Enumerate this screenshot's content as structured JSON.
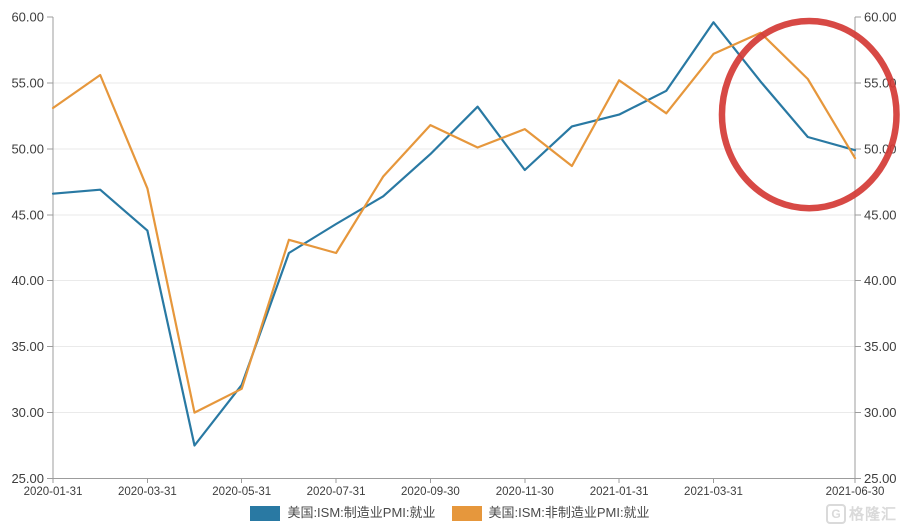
{
  "chart_data": {
    "type": "line",
    "title": "",
    "xlabel": "",
    "ylabel": "",
    "n_points": 18,
    "ylim": [
      25,
      60
    ],
    "y_ticks": [
      60,
      55,
      50,
      45,
      40,
      35,
      30,
      25
    ],
    "y_tick_decimals": 2,
    "grid": true,
    "legend_position": "bottom",
    "x_tick_labels": [
      {
        "i": 0,
        "label": "2020-01-31"
      },
      {
        "i": 2,
        "label": "2020-03-31"
      },
      {
        "i": 4,
        "label": "2020-05-31"
      },
      {
        "i": 6,
        "label": "2020-07-31"
      },
      {
        "i": 8,
        "label": "2020-09-30"
      },
      {
        "i": 10,
        "label": "2020-11-30"
      },
      {
        "i": 12,
        "label": "2021-01-31"
      },
      {
        "i": 14,
        "label": "2021-03-31"
      },
      {
        "i": 17,
        "label": "2021-06-30"
      }
    ],
    "series": [
      {
        "id": "manufacturing-pmi-employment",
        "name": "美国:ISM:制造业PMI:就业",
        "color": "#2979a3",
        "values": [
          46.6,
          46.9,
          43.8,
          27.5,
          32.1,
          42.1,
          44.3,
          46.4,
          49.6,
          53.2,
          48.4,
          51.7,
          52.6,
          54.4,
          59.6,
          55.1,
          50.9,
          49.9
        ]
      },
      {
        "id": "non-manufacturing-pmi-employment",
        "name": "美国:ISM:非制造业PMI:就业",
        "color": "#e6973c",
        "values": [
          53.1,
          55.6,
          47.0,
          30.0,
          31.8,
          43.1,
          42.1,
          47.9,
          51.8,
          50.1,
          51.5,
          48.7,
          55.2,
          52.7,
          57.2,
          58.8,
          55.3,
          49.3
        ]
      }
    ],
    "annotation_ellipse": {
      "note": "red circle highlighting recent employment decline",
      "color": "#d43a35",
      "stroke_width": 6.5,
      "month_center": 16.03,
      "value_center": 52.6,
      "month_radius": 1.85,
      "value_radius": 7.1
    },
    "style": {
      "grid_color": "#eaeaea",
      "axis_color": "#9c9c9c",
      "tick_label_color": "#3d3d3d",
      "line_width": 2.2
    }
  },
  "watermark": {
    "logo_text": "G",
    "brand_text": "格隆汇"
  }
}
